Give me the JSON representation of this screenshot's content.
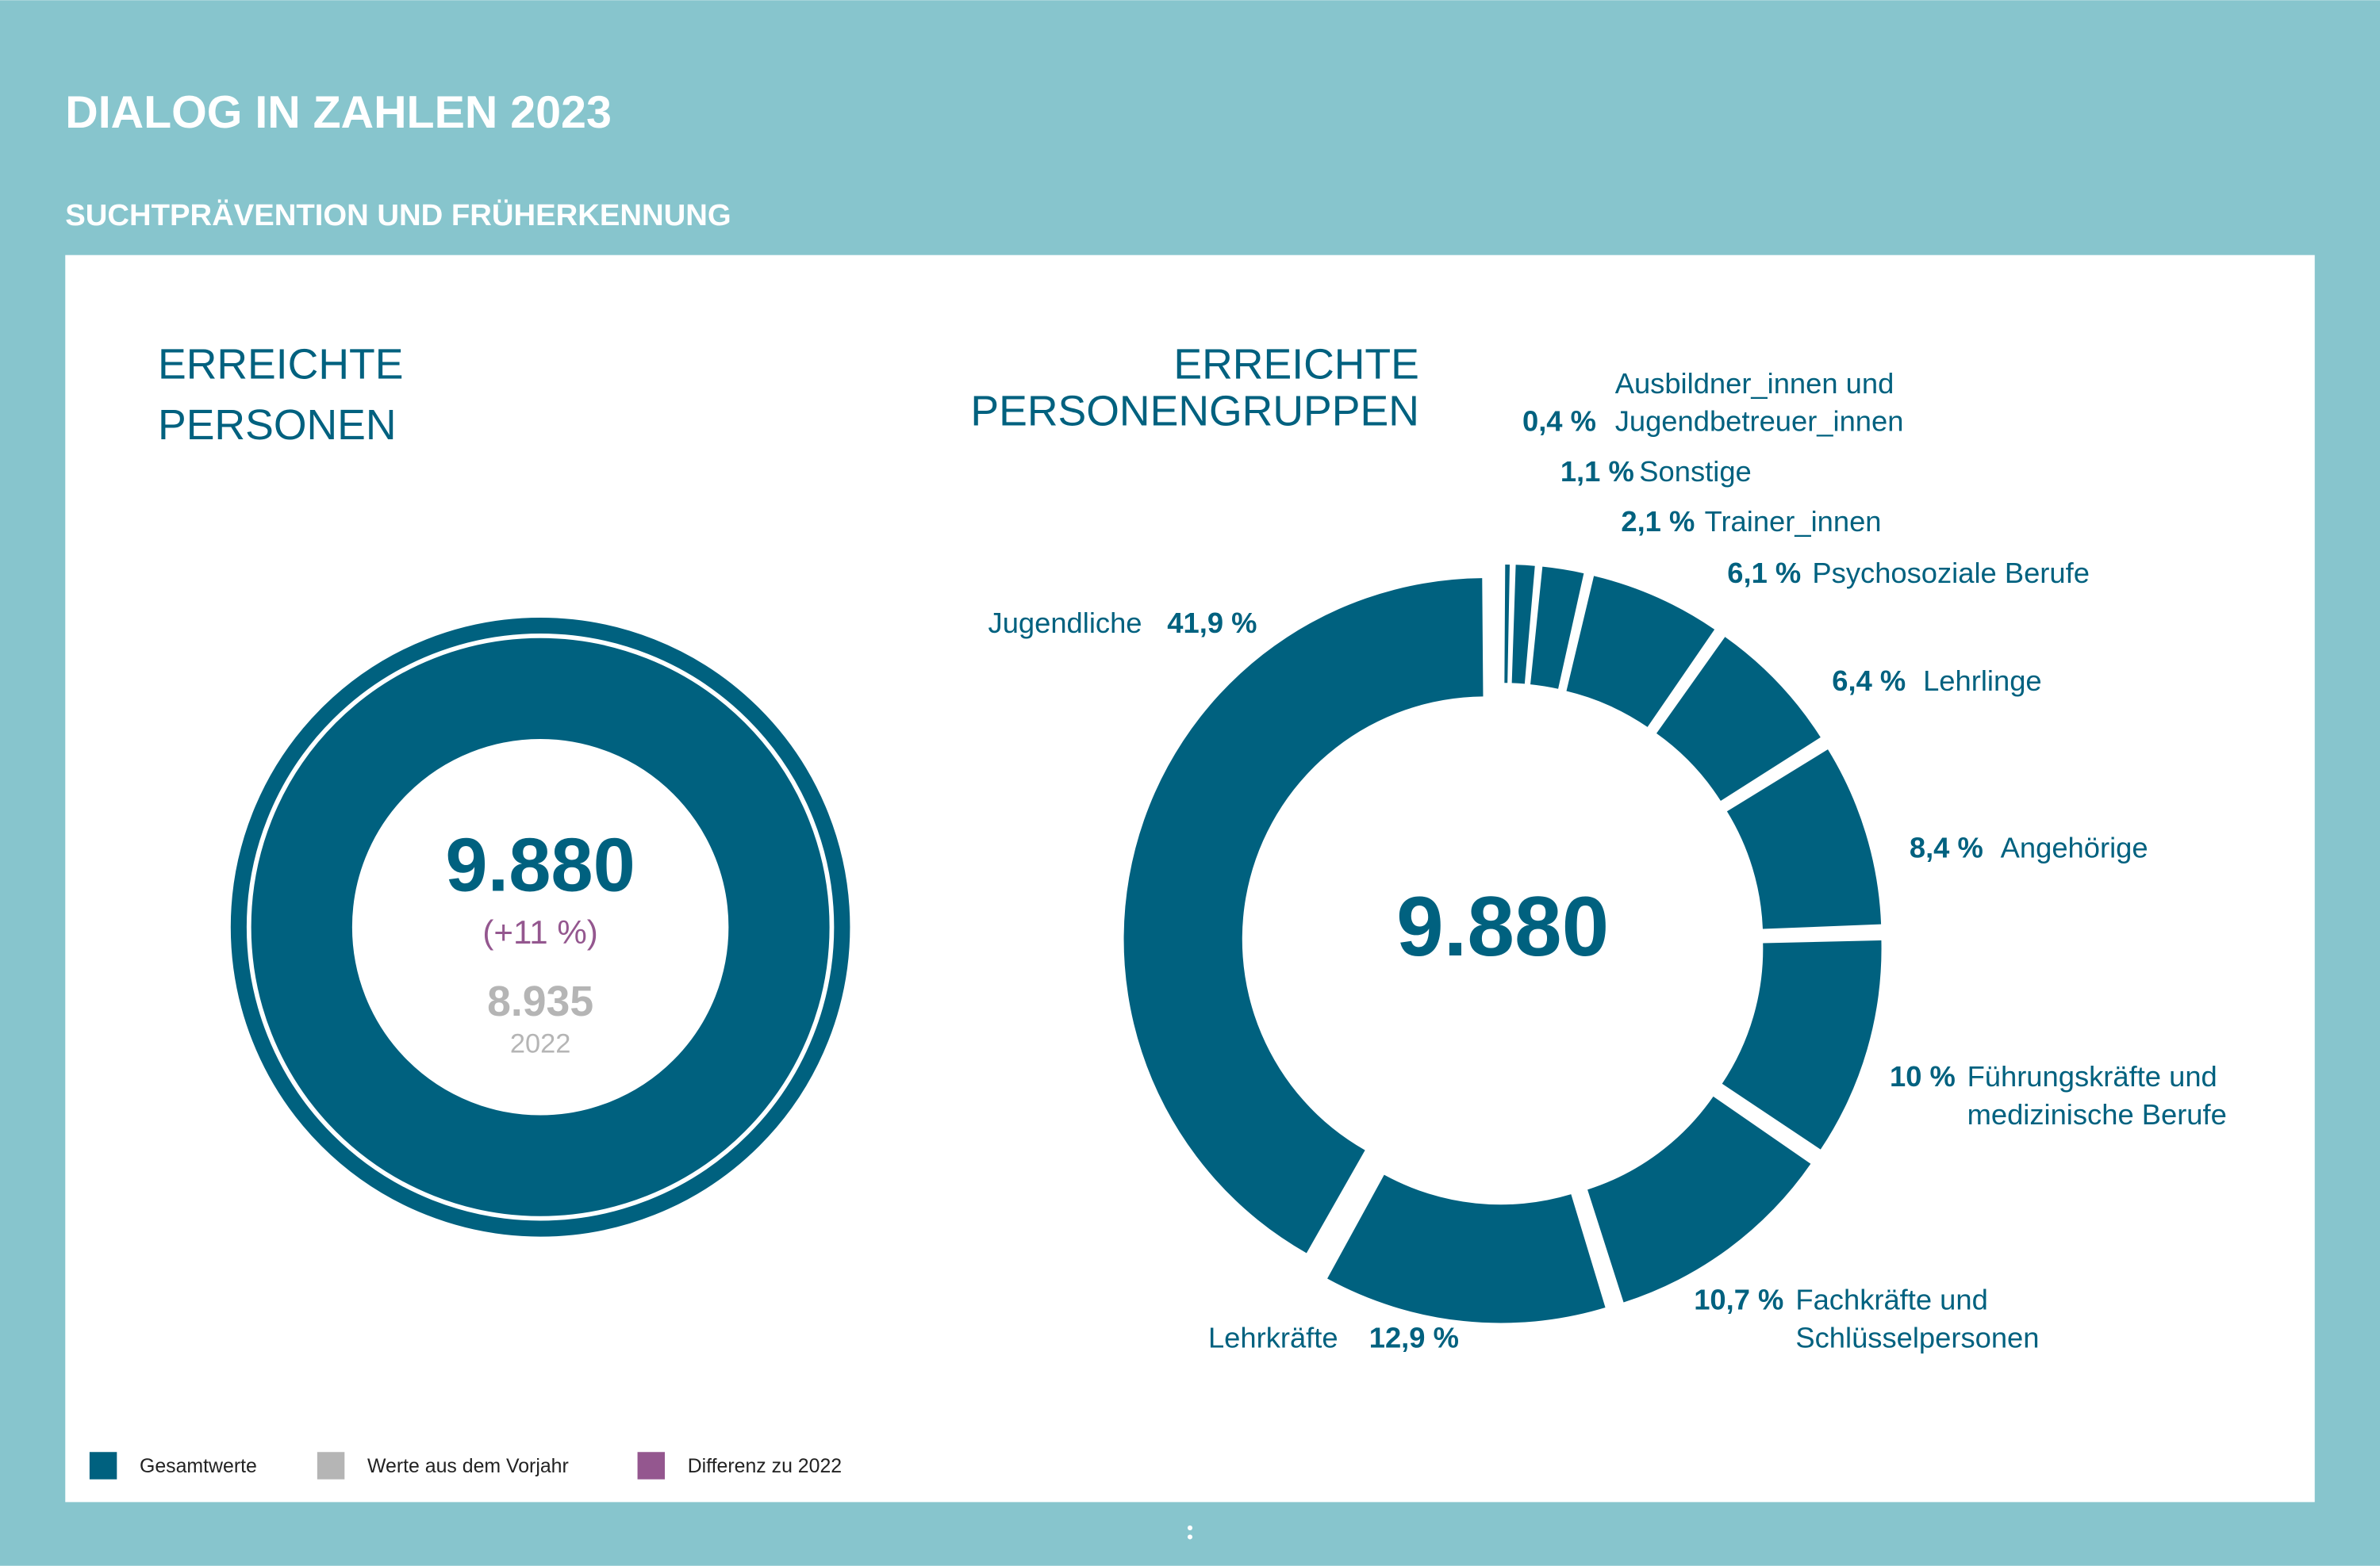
{
  "header": {
    "title": "DIALOG IN ZAHLEN 2023",
    "subtitle": "SUCHTPRÄVENTION UND FRÜHERKENNUNG"
  },
  "chart_data": [
    {
      "type": "ring",
      "title": [
        "ERREICHTE",
        "PERSONEN"
      ],
      "value": 9880,
      "value_label": "9.880",
      "change": {
        "value": 11,
        "label": "(+11 %)"
      },
      "previous": {
        "value": 8935,
        "label": "8.935",
        "year": "2022"
      },
      "color": "#00617f",
      "change_color": "#94578f",
      "previous_color": "#b5b5b5"
    },
    {
      "type": "donut",
      "title": [
        "ERREICHTE",
        "PERSONENGRUPPEN"
      ],
      "total": 9880,
      "total_label": "9.880",
      "categories": [
        [
          "Ausbildner_innen und",
          "Jugendbetreuer_innen"
        ],
        [
          "Sonstige"
        ],
        [
          "Trainer_innen"
        ],
        [
          "Psychosoziale Berufe"
        ],
        [
          "Lehrlinge"
        ],
        [
          "Angehörige"
        ],
        [
          "Führungskräfte und",
          "medizinische Berufe"
        ],
        [
          "Fachkräfte und",
          "Schlüsselpersonen"
        ],
        [
          "Lehrkräfte"
        ],
        [
          "Jugendliche"
        ]
      ],
      "values": [
        0.4,
        1.1,
        2.1,
        6.1,
        6.4,
        8.4,
        10,
        10.7,
        12.9,
        41.9
      ],
      "value_labels": [
        "0,4 %",
        "1,1 %",
        "2,1 %",
        "6,1 %",
        "6,4 %",
        "8,4 %",
        "10 %",
        "10,7 %",
        "12,9 %",
        "41,9 %"
      ],
      "color": "#00617f"
    }
  ],
  "legend": [
    {
      "name": "Gesamtwerte",
      "color": "#00617f"
    },
    {
      "name": "Werte aus dem Vorjahr",
      "color": "#b5b5b5"
    },
    {
      "name": "Differenz zu 2022",
      "color": "#94578f"
    }
  ]
}
